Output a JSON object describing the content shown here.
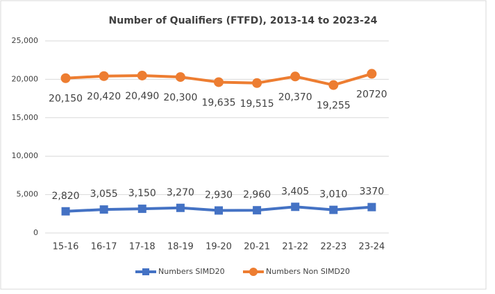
{
  "chart_data": {
    "type": "line",
    "title": "Number of Qualifiers (FTFD), 2013-14 to 2023-24",
    "categories": [
      "15-16",
      "16-17",
      "17-18",
      "18-19",
      "19-20",
      "20-21",
      "21-22",
      "22-23",
      "23-24"
    ],
    "series": [
      {
        "name": "Numbers SIMD20",
        "color": "#4472c4",
        "marker": "square",
        "values": [
          2820,
          3055,
          3150,
          3270,
          2930,
          2960,
          3405,
          3010,
          3370
        ],
        "value_labels": [
          "2,820",
          "3,055",
          "3,150",
          "3,270",
          "2,930",
          "2,960",
          "3,405",
          "3,010",
          "3370"
        ]
      },
      {
        "name": "Numbers Non SIMD20",
        "color": "#ed7d31",
        "marker": "circle",
        "values": [
          20150,
          20420,
          20490,
          20300,
          19635,
          19515,
          20370,
          19255,
          20720
        ],
        "value_labels": [
          "20,150",
          "20,420",
          "20,490",
          "20,300",
          "19,635",
          "19,515",
          "20,370",
          "19,255",
          "20720"
        ]
      }
    ],
    "ylim": [
      0,
      25000
    ],
    "yticks": [
      0,
      {
        "value": 5000,
        "label": "5,000"
      },
      {
        "value": 10000,
        "label": "10,000"
      },
      {
        "value": 15000,
        "label": "15,000"
      },
      {
        "value": 20000,
        "label": "20,000"
      },
      {
        "value": 25000,
        "label": "25,000"
      }
    ],
    "grid": true,
    "legend": "bottom"
  }
}
